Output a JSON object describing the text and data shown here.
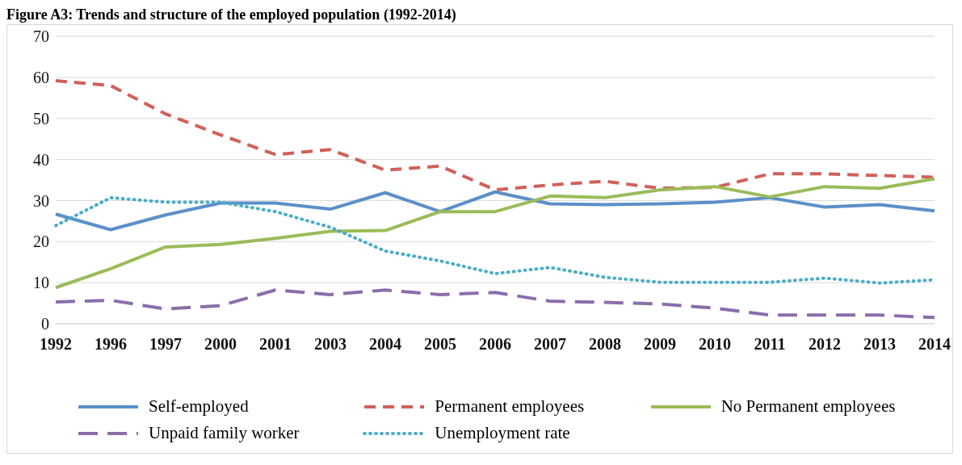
{
  "chart_data": {
    "type": "line",
    "title": "Figure A3: Trends and structure of the employed population (1992-2014)",
    "categories": [
      "1992",
      "1996",
      "1997",
      "2000",
      "2001",
      "2003",
      "2004",
      "2005",
      "2006",
      "2007",
      "2008",
      "2009",
      "2010",
      "2011",
      "2012",
      "2013",
      "2014"
    ],
    "series": [
      {
        "name": "Self-employed",
        "color": "#5b8fc9",
        "line_style": "solid",
        "values": [
          26.7,
          22.9,
          26.5,
          29.4,
          29.4,
          27.9,
          31.9,
          27.3,
          32.1,
          29.2,
          29.0,
          29.2,
          29.6,
          30.7,
          28.4,
          29.0,
          27.5
        ]
      },
      {
        "name": "Permanent employees",
        "color": "#d0605a",
        "line_style": "dashed",
        "values": [
          59.2,
          58.0,
          51.1,
          46.0,
          41.2,
          42.4,
          37.4,
          38.4,
          32.6,
          33.8,
          34.7,
          33.0,
          33.2,
          36.5,
          36.5,
          36.1,
          35.7
        ]
      },
      {
        "name": "No Permanent employees",
        "color": "#9bbb59",
        "line_style": "solid",
        "values": [
          8.8,
          13.4,
          18.7,
          19.3,
          20.8,
          22.5,
          22.7,
          27.3,
          27.3,
          31.1,
          30.7,
          32.6,
          33.4,
          30.9,
          33.4,
          33.0,
          35.3
        ]
      },
      {
        "name": "Unpaid family worker",
        "color": "#8a6eab",
        "line_style": "dashed",
        "values": [
          5.3,
          5.7,
          3.6,
          4.4,
          8.2,
          7.1,
          8.2,
          7.1,
          7.6,
          5.5,
          5.2,
          4.8,
          3.8,
          2.1,
          2.1,
          2.1,
          1.5
        ]
      },
      {
        "name": "Unemployment rate",
        "color": "#4bacc6",
        "line_style": "dotted",
        "values": [
          23.9,
          30.7,
          29.6,
          29.6,
          27.3,
          23.5,
          17.7,
          15.3,
          12.2,
          13.7,
          11.3,
          10.1,
          10.1,
          10.1,
          11.1,
          9.9,
          10.7
        ]
      }
    ],
    "ylim": [
      0,
      70
    ],
    "yticks": [
      0,
      10,
      20,
      30,
      40,
      50,
      60,
      70
    ],
    "grid": "y",
    "legend": "bottom",
    "marker": "none"
  }
}
